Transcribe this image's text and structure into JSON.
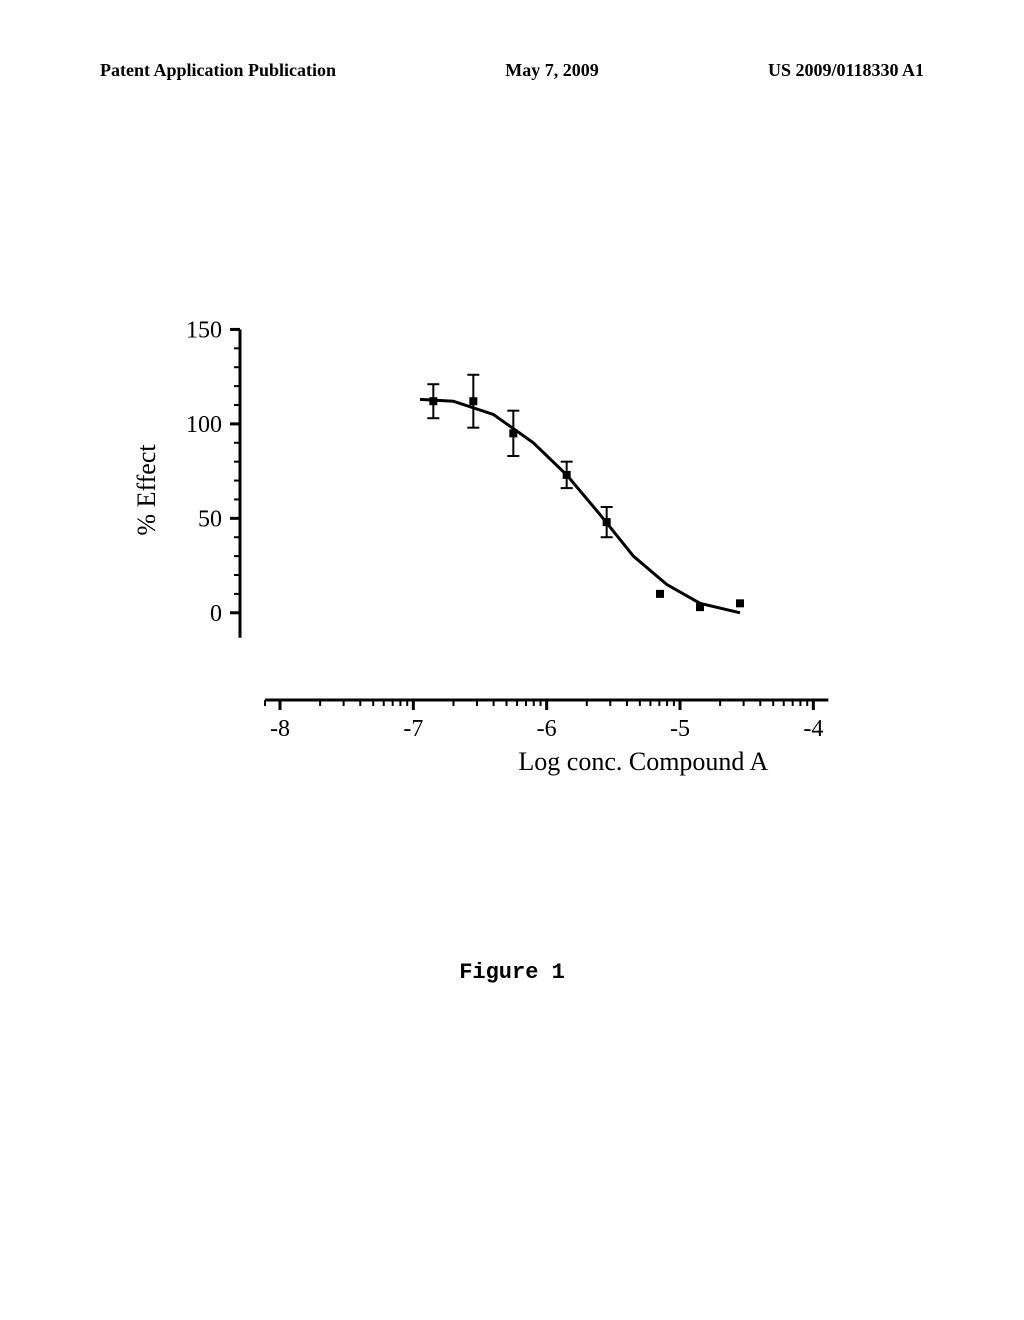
{
  "header": {
    "left": "Patent Application Publication",
    "center": "May 7, 2009",
    "right": "US 2009/0118330 A1"
  },
  "chart": {
    "type": "line_scatter_errorbar",
    "xlabel": "Log conc. Compound A",
    "ylabel": "% Effect",
    "xlim": [
      -8.3,
      -3.8
    ],
    "ylim": [
      -25,
      155
    ],
    "xticks": [
      -8,
      -7,
      -6,
      -5,
      -4
    ],
    "xtick_labels": [
      "-8",
      "-7",
      "-6",
      "-5",
      "-4"
    ],
    "yticks": [
      0,
      50,
      100,
      150
    ],
    "ytick_labels": [
      "0",
      "50",
      "100",
      "150"
    ],
    "x_minor_per_major": 9,
    "y_minor_per_major": 4,
    "axis_color": "#000000",
    "axis_width": 3,
    "tick_length_major": 10,
    "tick_length_minor": 6,
    "tick_fontsize": 24,
    "label_fontsize": 26,
    "marker_size": 8,
    "marker_color": "#000000",
    "line_width": 3,
    "line_color": "#000000",
    "errorbar_width": 2,
    "errorbar_cap": 6,
    "background_color": "#ffffff",
    "data_points": [
      {
        "x": -6.85,
        "y": 112,
        "err": 9
      },
      {
        "x": -6.55,
        "y": 112,
        "err": 14
      },
      {
        "x": -6.25,
        "y": 95,
        "err": 12
      },
      {
        "x": -5.85,
        "y": 73,
        "err": 7
      },
      {
        "x": -5.55,
        "y": 48,
        "err": 8
      },
      {
        "x": -5.15,
        "y": 10,
        "err": 0
      },
      {
        "x": -4.85,
        "y": 3,
        "err": 0
      },
      {
        "x": -4.55,
        "y": 5,
        "err": 0
      }
    ],
    "curve": [
      {
        "x": -6.95,
        "y": 113
      },
      {
        "x": -6.7,
        "y": 112
      },
      {
        "x": -6.4,
        "y": 105
      },
      {
        "x": -6.1,
        "y": 90
      },
      {
        "x": -5.85,
        "y": 73
      },
      {
        "x": -5.6,
        "y": 52
      },
      {
        "x": -5.35,
        "y": 30
      },
      {
        "x": -5.1,
        "y": 15
      },
      {
        "x": -4.85,
        "y": 5
      },
      {
        "x": -4.55,
        "y": 0
      }
    ]
  },
  "figure_label": "Figure 1"
}
